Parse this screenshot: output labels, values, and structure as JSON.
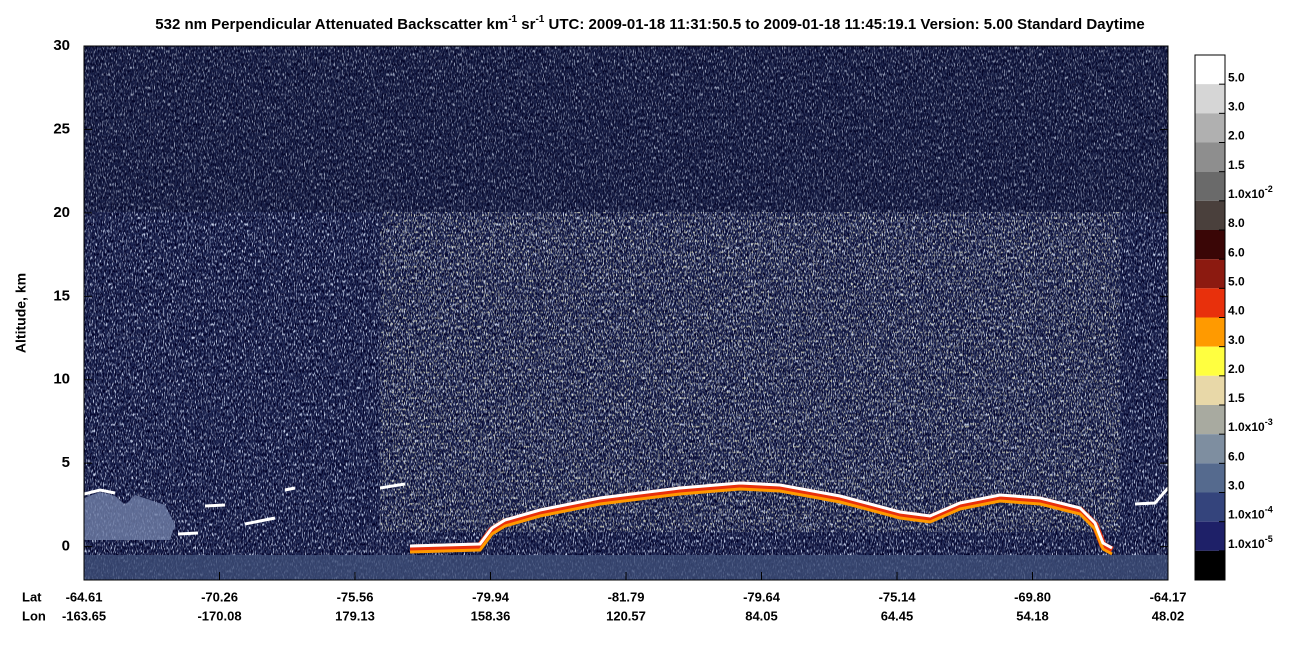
{
  "chart_data": {
    "type": "curtain",
    "title": {
      "parts": [
        "532 nm Perpendicular Attenuated Backscatter km",
        "-1",
        " sr",
        "-1",
        "  UTC: 2009-01-18 11:31:50.5 to 2009-01-18 11:45:19.1  Version: 5.00 Standard Daytime"
      ]
    },
    "y_label": "Altitude, km",
    "ylim": [
      -2,
      30
    ],
    "yticks": [
      0,
      5,
      10,
      15,
      20,
      25,
      30
    ],
    "x_row_labels": [
      "Lat",
      "Lon"
    ],
    "lat": [
      "-64.61",
      "-70.26",
      "-75.56",
      "-79.94",
      "-81.79",
      "-79.64",
      "-75.14",
      "-69.80",
      "-64.17"
    ],
    "lon": [
      "-163.65",
      "-170.08",
      "179.13",
      "158.36",
      "120.57",
      "84.05",
      "64.45",
      "54.18",
      "48.02"
    ],
    "colorbar": {
      "colors": [
        "#ffffff",
        "#d6d6d6",
        "#b0b0b0",
        "#8e8e8e",
        "#6a6a6a",
        "#4a403c",
        "#3a0606",
        "#8c1a10",
        "#e8300c",
        "#ff9a00",
        "#ffff40",
        "#e8d8a8",
        "#a8aaa0",
        "#7e8ea0",
        "#556a8e",
        "#34447c",
        "#1e2068",
        "#000000"
      ],
      "labels": [
        "5.0",
        "3.0",
        "2.0",
        "1.5",
        {
          "base": "1.0x10",
          "exp": "-2"
        },
        "8.0",
        "6.0",
        "5.0",
        "4.0",
        "3.0",
        "2.0",
        "1.5",
        {
          "base": "1.0x10",
          "exp": "-3"
        },
        "6.0",
        "3.0",
        {
          "base": "1.0x10",
          "exp": "-4"
        },
        {
          "base": "1.0x10",
          "exp": "-5"
        }
      ]
    }
  }
}
